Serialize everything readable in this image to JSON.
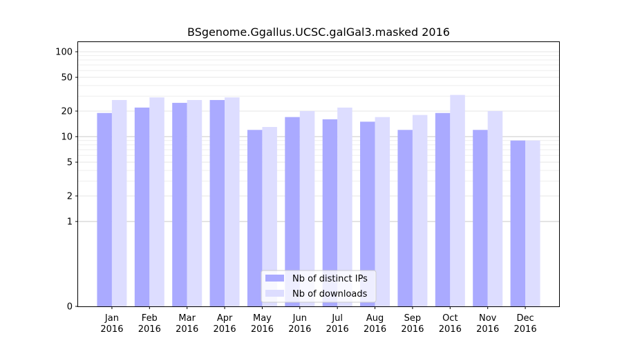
{
  "chart_data": {
    "type": "bar",
    "title": "BSgenome.Ggallus.UCSC.galGal3.masked 2016",
    "xlabel": "",
    "ylabel": "",
    "y_scale": "symlog",
    "ylim": [
      0,
      130
    ],
    "yticks": [
      0,
      1,
      2,
      5,
      10,
      20,
      50,
      100
    ],
    "ytick_labels": [
      "0",
      "1",
      "2",
      "5",
      "10",
      "20",
      "50",
      "100"
    ],
    "categories": [
      "Jan",
      "Feb",
      "Mar",
      "Apr",
      "May",
      "Jun",
      "Jul",
      "Aug",
      "Sep",
      "Oct",
      "Nov",
      "Dec"
    ],
    "category_year": "2016",
    "series": [
      {
        "name": "Nb of distinct IPs",
        "color": "#aaaaff",
        "values": [
          19,
          22,
          25,
          27,
          12,
          17,
          16,
          15,
          12,
          19,
          12,
          9
        ]
      },
      {
        "name": "Nb of downloads",
        "color": "#ddddff",
        "values": [
          27,
          29,
          27,
          29,
          13,
          20,
          22,
          17,
          18,
          31,
          20,
          9
        ]
      }
    ],
    "grid": true,
    "legend_position": "bottom-center"
  }
}
